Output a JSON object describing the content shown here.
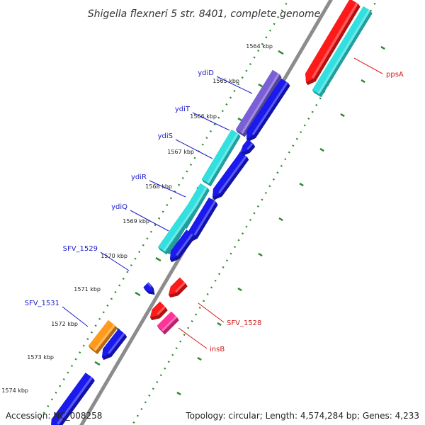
{
  "title": "Shigella flexneri 5 str. 8401, complete genome",
  "footer": {
    "accession": "Accession: NC_008258",
    "summary": "Topology: circular; Length: 4,574,284 bp; Genes: 4,233"
  },
  "colors": {
    "backbone": "#8c8c8c",
    "tick": "#2e8b2e",
    "label_blue": "#1a1acc",
    "label_red": "#d11a1a"
  },
  "ticks": [
    {
      "label": "1564 kbp"
    },
    {
      "label": "1565 kbp"
    },
    {
      "label": "1566 kbp"
    },
    {
      "label": "1567 kbp"
    },
    {
      "label": "1568 kbp"
    },
    {
      "label": "1569 kbp"
    },
    {
      "label": "1570 kbp"
    },
    {
      "label": "1571 kbp"
    },
    {
      "label": "1572 kbp"
    },
    {
      "label": "1573 kbp"
    },
    {
      "label": "1574 kbp"
    }
  ],
  "genes": [
    {
      "name": "ppsA",
      "color": "#ff1a1a"
    },
    {
      "name": "ydiD",
      "color": "#7a5fd6"
    },
    {
      "name": "ydiT",
      "color": "#33e0e0"
    },
    {
      "name": "ydiS",
      "color": "#33e0e0"
    },
    {
      "name": "ydiR",
      "color": "#33e0e0"
    },
    {
      "name": "ydiQ",
      "color": "#33e0e0"
    },
    {
      "name": "SFV_1529",
      "color": "#1a1aee"
    },
    {
      "name": "SFV_1528",
      "color": "#ff1a1a"
    },
    {
      "name": "SFV_1531",
      "color": "#ff9a1a"
    },
    {
      "name": "insB",
      "color": "#ff3399"
    }
  ]
}
